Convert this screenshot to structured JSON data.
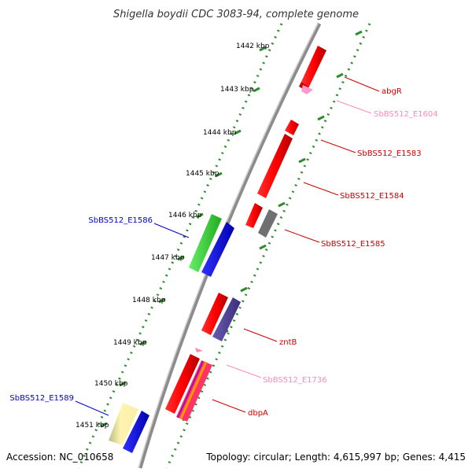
{
  "title": "Shigella boydii CDC 3083-94, complete genome",
  "footer": {
    "accession": "Accession: NC_010658",
    "summary": "Topology: circular; Length: 4,615,997 bp; Genes: 4,415"
  },
  "colors": {
    "backbone": "#8c8c8c",
    "tick_green": "#2e8b2e",
    "label_red": "#cc0000",
    "label_pink": "#ff88bb",
    "label_blue": "#0000cc"
  },
  "kbp_ticks": [
    "1442 kbp",
    "1443 kbp",
    "1444 kbp",
    "1445 kbp",
    "1446 kbp",
    "1447 kbp",
    "1448 kbp",
    "1449 kbp",
    "1450 kbp",
    "1451 kbp"
  ],
  "genes": {
    "abgR": "abgR",
    "e1604": "SbBS512_E1604",
    "e1583": "SbBS512_E1583",
    "e1584": "SbBS512_E1584",
    "e1585": "SbBS512_E1585",
    "e1586": "SbBS512_E1586",
    "zntB": "zntB",
    "e1736": "SbBS512_E1736",
    "e1589": "SbBS512_E1589",
    "dbpA": "dbpA"
  }
}
